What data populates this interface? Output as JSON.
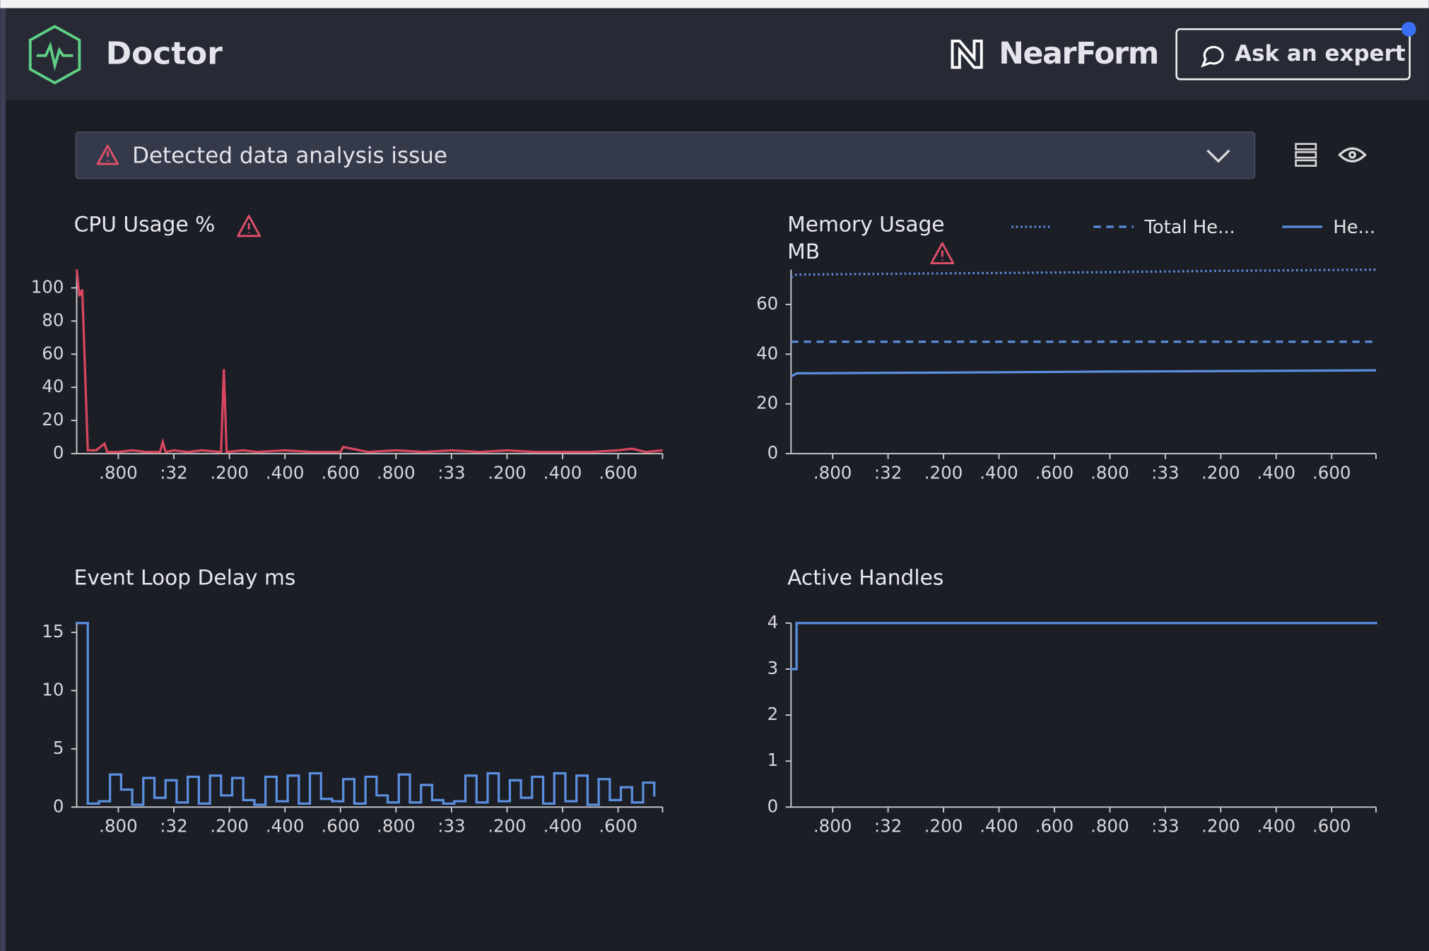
{
  "header": {
    "app_name": "Doctor",
    "brand": "NearForm",
    "button": "Ask an expert"
  },
  "issue": {
    "text": "Detected data analysis issue"
  },
  "chart_data": [
    {
      "type": "line",
      "title": "CPU Usage %",
      "warning": true,
      "color": "#d9475f",
      "x": [
        31.65,
        31.66,
        31.67,
        31.69,
        31.72,
        31.75,
        31.76,
        31.8,
        31.85,
        31.9,
        31.95,
        31.96,
        31.97,
        32.0,
        32.05,
        32.1,
        32.17,
        32.18,
        32.19,
        32.25,
        32.3,
        32.4,
        32.5,
        32.6,
        32.61,
        32.7,
        32.8,
        32.9,
        33.0,
        33.1,
        33.2,
        33.3,
        33.4,
        33.5,
        33.6,
        33.65,
        33.7,
        33.76
      ],
      "values": [
        111,
        95,
        99,
        2,
        2,
        6,
        1,
        1,
        2,
        1,
        1,
        7,
        1,
        2,
        1,
        2,
        1,
        51,
        1,
        2,
        1,
        2,
        1,
        1,
        4,
        1,
        2,
        1,
        2,
        1,
        2,
        1,
        1,
        1,
        2,
        3,
        1,
        2
      ],
      "xlim": [
        31.65,
        33.76
      ],
      "ylim": [
        0,
        111
      ],
      "yticks": [
        0,
        20,
        40,
        60,
        80,
        100
      ],
      "xticks": [
        {
          "value": 31.8,
          "label": ".800"
        },
        {
          "value": 32.0,
          "label": ":32"
        },
        {
          "value": 32.2,
          "label": ".200"
        },
        {
          "value": 32.4,
          "label": ".400"
        },
        {
          "value": 32.6,
          "label": ".600"
        },
        {
          "value": 32.8,
          "label": ".800"
        },
        {
          "value": 33.0,
          "label": ":33"
        },
        {
          "value": 33.2,
          "label": ".200"
        },
        {
          "value": 33.4,
          "label": ".400"
        },
        {
          "value": 33.6,
          "label": ".600"
        }
      ]
    },
    {
      "type": "line",
      "title": "Memory Usage MB",
      "warning": true,
      "x": [
        31.65,
        31.67,
        32.2,
        32.8,
        33.2,
        33.76
      ],
      "series": [
        {
          "color": "#5b8fe0",
          "dash": "dotted",
          "values": [
            71,
            72,
            72.5,
            73,
            73.5,
            74
          ]
        },
        {
          "name": "Total He...",
          "color": "#5b8fe0",
          "dash": "dashed",
          "values": [
            45,
            45,
            45,
            45,
            45,
            45
          ]
        },
        {
          "name": "He...",
          "color": "#5b8fe0",
          "dash": "solid",
          "values": [
            31,
            32.3,
            32.6,
            33,
            33.2,
            33.5
          ]
        }
      ],
      "xlim": [
        31.65,
        33.76
      ],
      "ylim": [
        0,
        74
      ],
      "yticks": [
        0,
        20,
        40,
        60
      ],
      "xticks": [
        {
          "value": 31.8,
          "label": ".800"
        },
        {
          "value": 32.0,
          "label": ":32"
        },
        {
          "value": 32.2,
          "label": ".200"
        },
        {
          "value": 32.4,
          "label": ".400"
        },
        {
          "value": 32.6,
          "label": ".600"
        },
        {
          "value": 32.8,
          "label": ".800"
        },
        {
          "value": 33.0,
          "label": ":33"
        },
        {
          "value": 33.2,
          "label": ".200"
        },
        {
          "value": 33.4,
          "label": ".400"
        },
        {
          "value": 33.6,
          "label": ".600"
        }
      ]
    },
    {
      "type": "line",
      "title": "Event Loop Delay ms",
      "step": true,
      "color": "#5b8fe0",
      "x": [
        31.65,
        31.69,
        31.73,
        31.77,
        31.81,
        31.85,
        31.89,
        31.93,
        31.97,
        32.01,
        32.05,
        32.09,
        32.13,
        32.17,
        32.21,
        32.25,
        32.29,
        32.33,
        32.37,
        32.41,
        32.45,
        32.49,
        32.53,
        32.57,
        32.61,
        32.65,
        32.69,
        32.73,
        32.77,
        32.81,
        32.85,
        32.89,
        32.93,
        32.97,
        33.01,
        33.05,
        33.09,
        33.13,
        33.17,
        33.21,
        33.25,
        33.29,
        33.33,
        33.37,
        33.41,
        33.45,
        33.49,
        33.53,
        33.57,
        33.61,
        33.65,
        33.69,
        33.73
      ],
      "values": [
        15.8,
        0.3,
        0.5,
        2.8,
        1.5,
        0.2,
        2.5,
        0.8,
        2.3,
        0.4,
        2.6,
        0.3,
        2.7,
        1.0,
        2.5,
        0.6,
        0.2,
        2.6,
        0.5,
        2.7,
        0.3,
        2.9,
        0.7,
        0.5,
        2.4,
        0.3,
        2.6,
        1.0,
        0.4,
        2.8,
        0.4,
        1.9,
        0.6,
        0.3,
        0.5,
        2.7,
        0.4,
        2.9,
        0.5,
        2.3,
        0.8,
        2.6,
        0.3,
        2.9,
        0.5,
        2.7,
        0.2,
        2.4,
        0.6,
        1.7,
        0.4,
        2.1,
        1.0
      ],
      "xlim": [
        31.65,
        33.76
      ],
      "ylim": [
        0,
        15.8
      ],
      "yticks": [
        0,
        5,
        10,
        15
      ],
      "xticks": [
        {
          "value": 31.8,
          "label": ".800"
        },
        {
          "value": 32.0,
          "label": ":32"
        },
        {
          "value": 32.2,
          "label": ".200"
        },
        {
          "value": 32.4,
          "label": ".400"
        },
        {
          "value": 32.6,
          "label": ".600"
        },
        {
          "value": 32.8,
          "label": ".800"
        },
        {
          "value": 33.0,
          "label": ":33"
        },
        {
          "value": 33.2,
          "label": ".200"
        },
        {
          "value": 33.4,
          "label": ".400"
        },
        {
          "value": 33.6,
          "label": ".600"
        }
      ]
    },
    {
      "type": "line",
      "title": "Active Handles",
      "step": true,
      "color": "#5b8fe0",
      "x": [
        31.65,
        31.67,
        33.76
      ],
      "values": [
        3,
        4,
        4
      ],
      "xlim": [
        31.65,
        33.76
      ],
      "ylim": [
        0,
        4
      ],
      "yticks": [
        0,
        1,
        2,
        3,
        4
      ],
      "xticks": [
        {
          "value": 31.8,
          "label": ".800"
        },
        {
          "value": 32.0,
          "label": ":32"
        },
        {
          "value": 32.2,
          "label": ".200"
        },
        {
          "value": 32.4,
          "label": ".400"
        },
        {
          "value": 32.6,
          "label": ".600"
        },
        {
          "value": 32.8,
          "label": ".800"
        },
        {
          "value": 33.0,
          "label": ":33"
        },
        {
          "value": 33.2,
          "label": ".200"
        },
        {
          "value": 33.4,
          "label": ".400"
        },
        {
          "value": 33.6,
          "label": ".600"
        }
      ]
    }
  ]
}
